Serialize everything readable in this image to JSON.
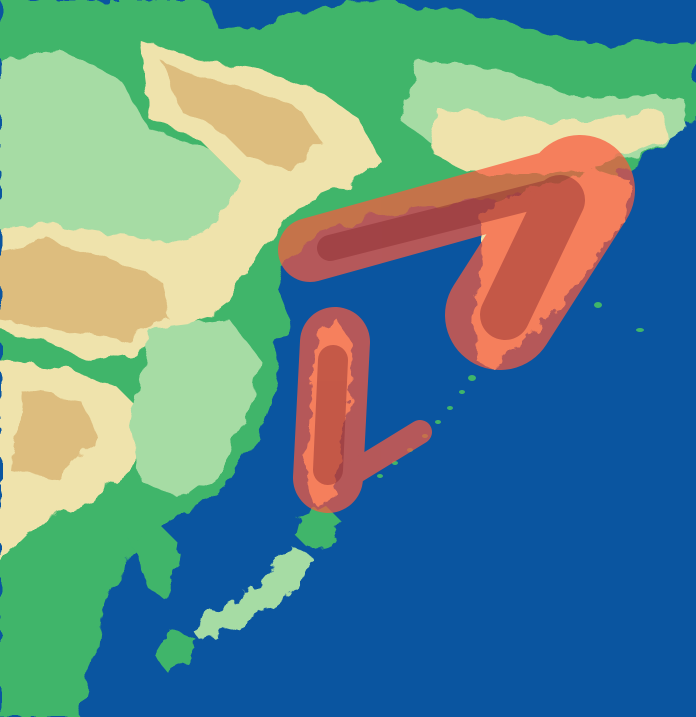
{
  "map": {
    "type": "physical-relief",
    "colors": {
      "sea": "#0a55a0",
      "lowland": "#3fb56a",
      "plain": "#a6dca4",
      "hill": "#efe3ac",
      "upland": "#ddbd7e",
      "mountain": "#b78a52",
      "highlight_fill": "#f85a3e",
      "highlight_dark": "#8a2a2e"
    },
    "highlighted_regions": [
      {
        "id": "region-okhotsk-coast-to-kamchatka",
        "shape": "arc-band"
      },
      {
        "id": "region-sakhalin-kurils",
        "shape": "hook-band"
      }
    ]
  }
}
